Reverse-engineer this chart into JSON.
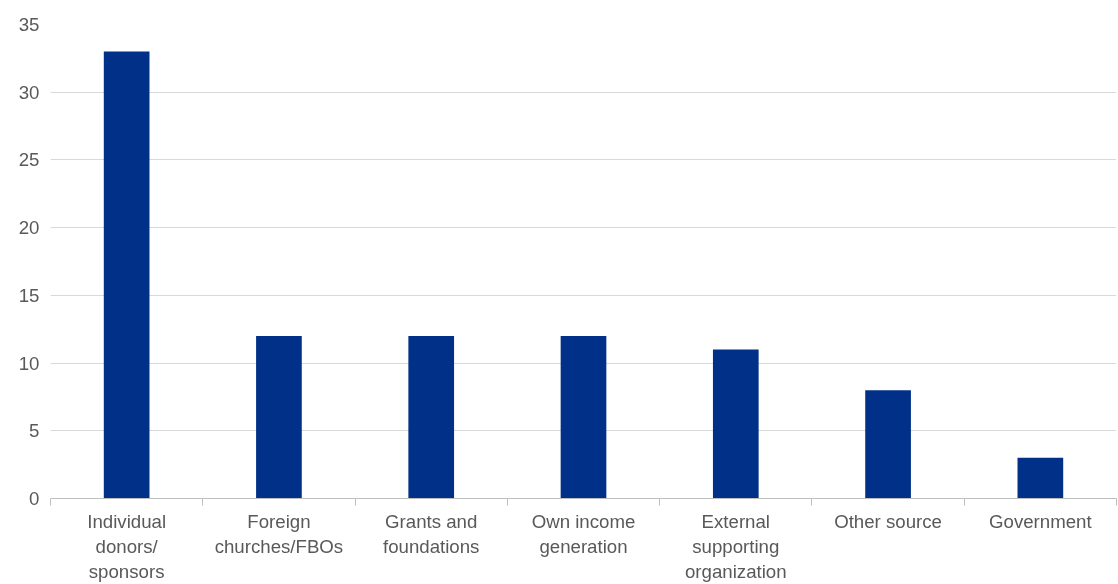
{
  "chart_data": {
    "type": "bar",
    "categories": [
      "Individual donors/ sponsors",
      "Foreign churches/FBOs",
      "Grants and foundations",
      "Own income generation",
      "External supporting organization",
      "Other source",
      "Government"
    ],
    "values": [
      33,
      12,
      12,
      12,
      11,
      8,
      3
    ],
    "color": "#003087",
    "ylim": [
      0,
      35
    ],
    "yticks": [
      0,
      5,
      10,
      15,
      20,
      25,
      30,
      35
    ],
    "grid": "y"
  }
}
